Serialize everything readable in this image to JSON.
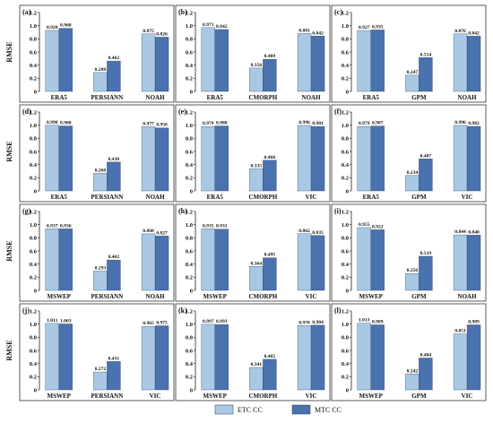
{
  "colors": {
    "etc": "#a8c8e6",
    "mtc": "#4a72b0",
    "frame": "#333333"
  },
  "legend": {
    "etc_label": "ETC CC",
    "mtc_label": "MTC CC"
  },
  "chart_data": [
    {
      "type": "bar",
      "panel_label": "(a)",
      "ylabel": "RMSE",
      "ylim": [
        0,
        1.2
      ],
      "yticks": [
        "0",
        "0.2",
        "0.4",
        "0.6",
        "0.8",
        "1.0",
        "1.2"
      ],
      "categories": [
        "ERA5",
        "PERSIANN",
        "NOAH"
      ],
      "series": [
        {
          "name": "ETC CC",
          "values": [
            0.928,
            0.288,
            0.875
          ],
          "labels": [
            "0.928",
            "0.288",
            "0.875"
          ]
        },
        {
          "name": "MTC CC",
          "values": [
            0.96,
            0.462,
            0.826
          ],
          "labels": [
            "0.960",
            "0.462",
            "0.826"
          ]
        }
      ]
    },
    {
      "type": "bar",
      "panel_label": "(b)",
      "ylabel": "",
      "ylim": [
        0,
        1.2
      ],
      "yticks": [
        "0",
        "0.2",
        "0.4",
        "0.6",
        "0.8",
        "1.0",
        "1.2"
      ],
      "categories": [
        "ERA5",
        "CMORPH",
        "NOAH"
      ],
      "series": [
        {
          "name": "ETC CC",
          "values": [
            0.971,
            0.356,
            0.881
          ],
          "labels": [
            "0.971",
            "0.356",
            "0.881"
          ]
        },
        {
          "name": "MTC CC",
          "values": [
            0.942,
            0.489,
            0.842
          ],
          "labels": [
            "0.942",
            "0.489",
            "0.842"
          ]
        }
      ]
    },
    {
      "type": "bar",
      "panel_label": "(c)",
      "ylabel": "",
      "ylim": [
        0,
        1.2
      ],
      "yticks": [
        "0",
        "0.2",
        "0.4",
        "0.6",
        "0.8",
        "1.0",
        "1.2"
      ],
      "categories": [
        "ERA5",
        "GPM",
        "NOAH"
      ],
      "series": [
        {
          "name": "ETC CC",
          "values": [
            0.927,
            0.247,
            0.876
          ],
          "labels": [
            "0.927",
            "0.247",
            "0.876"
          ]
        },
        {
          "name": "MTC CC",
          "values": [
            0.935,
            0.514,
            0.842
          ],
          "labels": [
            "0.935",
            "0.514",
            "0.842"
          ]
        }
      ]
    },
    {
      "type": "bar",
      "panel_label": "(d)",
      "ylabel": "RMSE",
      "ylim": [
        0,
        1.2
      ],
      "yticks": [
        "0",
        "0.2",
        "0.4",
        "0.6",
        "0.8",
        "1.0",
        "1.2"
      ],
      "categories": [
        "ERA5",
        "PERSIANN",
        "NOAH"
      ],
      "series": [
        {
          "name": "ETC CC",
          "values": [
            0.998,
            0.268,
            0.977
          ],
          "labels": [
            "0.998",
            "0.268",
            "0.977"
          ]
        },
        {
          "name": "MTC CC",
          "values": [
            0.988,
            0.438,
            0.958
          ],
          "labels": [
            "0.988",
            "0.438",
            "0.958"
          ]
        }
      ]
    },
    {
      "type": "bar",
      "panel_label": "(e)",
      "ylabel": "",
      "ylim": [
        0,
        1.2
      ],
      "yticks": [
        "0",
        "0.2",
        "0.4",
        "0.6",
        "0.8",
        "1.0",
        "1.2"
      ],
      "categories": [
        "ERA5",
        "CMORPH",
        "VIC"
      ],
      "series": [
        {
          "name": "ETC CC",
          "values": [
            0.979,
            0.335,
            0.996
          ],
          "labels": [
            "0.979",
            "0.335",
            "0.996"
          ]
        },
        {
          "name": "MTC CC",
          "values": [
            0.988,
            0.466,
            0.981
          ],
          "labels": [
            "0.988",
            "0.466",
            "0.981"
          ]
        }
      ]
    },
    {
      "type": "bar",
      "panel_label": "(f)",
      "ylabel": "",
      "ylim": [
        0,
        1.2
      ],
      "yticks": [
        "0",
        "0.2",
        "0.4",
        "0.6",
        "0.8",
        "1.0",
        "1.2"
      ],
      "categories": [
        "ERA5",
        "GPM",
        "VIC"
      ],
      "series": [
        {
          "name": "ETC CC",
          "values": [
            0.979,
            0.234,
            0.996
          ],
          "labels": [
            "0.979",
            "0.234",
            "0.996"
          ]
        },
        {
          "name": "MTC CC",
          "values": [
            0.987,
            0.487,
            0.982
          ],
          "labels": [
            "0.987",
            "0.487",
            "0.982"
          ]
        }
      ]
    },
    {
      "type": "bar",
      "panel_label": "(g)",
      "ylabel": "RMSE",
      "ylim": [
        0,
        1.2
      ],
      "yticks": [
        "0",
        "0.2",
        "0.4",
        "0.6",
        "0.8",
        "1.0",
        "1.2"
      ],
      "categories": [
        "MSWEP",
        "PERSIANN",
        "NOAH"
      ],
      "series": [
        {
          "name": "ETC CC",
          "values": [
            0.937,
            0.293,
            0.86
          ],
          "labels": [
            "0.937",
            "0.293",
            "0.860"
          ]
        },
        {
          "name": "MTC CC",
          "values": [
            0.936,
            0.462,
            0.827
          ],
          "labels": [
            "0.936",
            "0.462",
            "0.827"
          ]
        }
      ]
    },
    {
      "type": "bar",
      "panel_label": "(h)",
      "ylabel": "",
      "ylim": [
        0,
        1.2
      ],
      "yticks": [
        "0",
        "0.2",
        "0.4",
        "0.6",
        "0.8",
        "1.0",
        "1.2"
      ],
      "categories": [
        "MSWEP",
        "CMORPH",
        "VIC"
      ],
      "series": [
        {
          "name": "ETC CC",
          "values": [
            0.935,
            0.364,
            0.862
          ],
          "labels": [
            "0.935",
            "0.364",
            "0.862"
          ]
        },
        {
          "name": "MTC CC",
          "values": [
            0.931,
            0.495,
            0.835
          ],
          "labels": [
            "0.931",
            "0.495",
            "0.835"
          ]
        }
      ]
    },
    {
      "type": "bar",
      "panel_label": "(i)",
      "ylabel": "",
      "ylim": [
        0,
        1.2
      ],
      "yticks": [
        "0",
        "0.2",
        "0.4",
        "0.6",
        "0.8",
        "1.0",
        "1.2"
      ],
      "categories": [
        "MSWEP",
        "GPM",
        "NOAH"
      ],
      "series": [
        {
          "name": "ETC CC",
          "values": [
            0.955,
            0.256,
            0.844
          ],
          "labels": [
            "0.955",
            "0.256",
            "0.844"
          ]
        },
        {
          "name": "MTC CC",
          "values": [
            0.922,
            0.519,
            0.84
          ],
          "labels": [
            "0.922",
            "0.519",
            "0.840"
          ]
        }
      ]
    },
    {
      "type": "bar",
      "panel_label": "(j)",
      "ylabel": "RMSE",
      "ylim": [
        0,
        1.2
      ],
      "yticks": [
        "0",
        "0.2",
        "0.4",
        "0.6",
        "0.8",
        "1.0",
        "1.2"
      ],
      "categories": [
        "MSWEP",
        "PERSIANN",
        "VIC"
      ],
      "series": [
        {
          "name": "ETC CC",
          "values": [
            1.011,
            0.272,
            0.965
          ],
          "labels": [
            "1.011",
            "0.272",
            "0.965"
          ]
        },
        {
          "name": "MTC CC",
          "values": [
            1.003,
            0.431,
            0.975
          ],
          "labels": [
            "1.003",
            "0.431",
            "0.975"
          ]
        }
      ]
    },
    {
      "type": "bar",
      "panel_label": "(k)",
      "ylabel": "",
      "ylim": [
        0,
        1.2
      ],
      "yticks": [
        "0",
        "0.2",
        "0.4",
        "0.6",
        "0.8",
        "1.0",
        "1.2"
      ],
      "categories": [
        "MSWEP",
        "CMORPH",
        "VIC"
      ],
      "series": [
        {
          "name": "ETC CC",
          "values": [
            0.997,
            0.341,
            0.978
          ],
          "labels": [
            "0.997",
            "0.341",
            "0.978"
          ]
        },
        {
          "name": "MTC CC",
          "values": [
            0.993,
            0.465,
            0.984
          ],
          "labels": [
            "0.993",
            "0.465",
            "0.984"
          ]
        }
      ]
    },
    {
      "type": "bar",
      "panel_label": "(l)",
      "ylabel": "",
      "ylim": [
        0,
        1.2
      ],
      "yticks": [
        "0",
        "0.2",
        "0.4",
        "0.6",
        "0.8",
        "1.0",
        "1.2"
      ],
      "categories": [
        "MSWEP",
        "GPM",
        "VIC"
      ],
      "series": [
        {
          "name": "ETC CC",
          "values": [
            1.013,
            0.242,
            0.851
          ],
          "labels": [
            "1.013",
            "0.242",
            "0.851"
          ]
        },
        {
          "name": "MTC CC",
          "values": [
            0.989,
            0.484,
            0.989
          ],
          "labels": [
            "0.989",
            "0.484",
            "0.989"
          ]
        }
      ]
    }
  ]
}
